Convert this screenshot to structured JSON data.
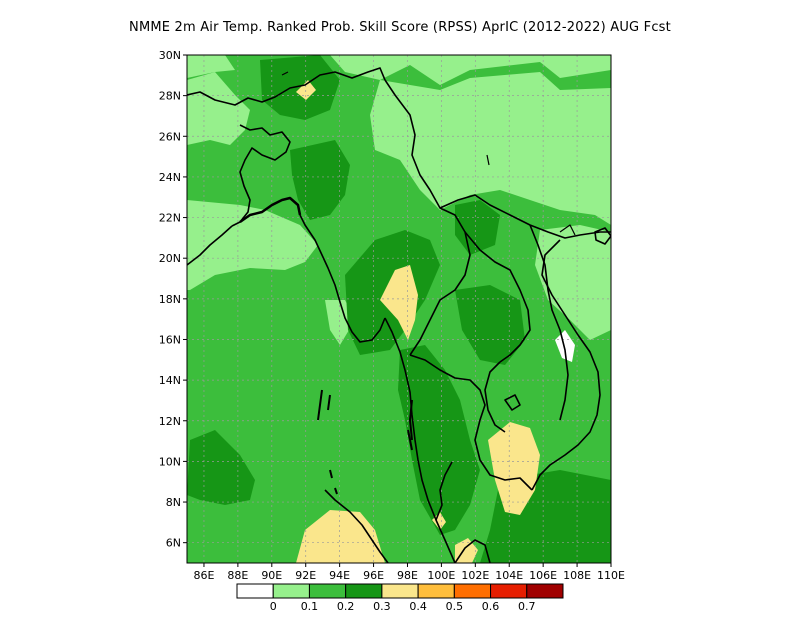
{
  "title": "NMME  2m Air Temp. Ranked Prob. Skill Score (RPSS) AprIC (2012-2022) AUG Fcst",
  "lat_labels": [
    "30N",
    "28N",
    "26N",
    "24N",
    "22N",
    "20N",
    "18N",
    "16N",
    "14N",
    "12N",
    "10N",
    "8N",
    "6N"
  ],
  "lon_labels": [
    "86E",
    "88E",
    "90E",
    "92E",
    "94E",
    "96E",
    "98E",
    "100E",
    "102E",
    "104E",
    "106E",
    "108E",
    "110E"
  ],
  "extent": {
    "lon_min": 85,
    "lon_max": 110,
    "lat_min": 5,
    "lat_max": 30
  },
  "colorbar": {
    "labels": [
      "0",
      "0.1",
      "0.2",
      "0.3",
      "0.4",
      "0.5",
      "0.6",
      "0.7"
    ],
    "colors": [
      "#ffffff",
      "#96f08c",
      "#3cbe3c",
      "#169616",
      "#fae68c",
      "#ffbe3c",
      "#ff6e00",
      "#e61e00",
      "#a00000"
    ]
  },
  "colors": {
    "light_green": "#96f08c",
    "mid_green": "#3cbe3c",
    "dark_green": "#169616",
    "yellow": "#fae68c",
    "white": "#ffffff",
    "coast": "#000000",
    "grid": "#9a9a9a"
  }
}
